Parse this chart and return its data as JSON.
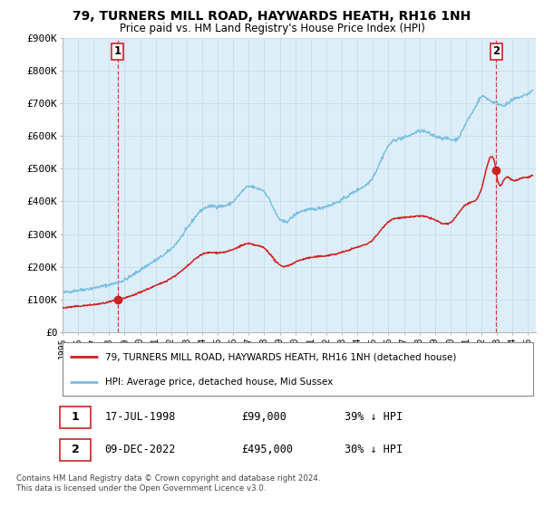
{
  "title": "79, TURNERS MILL ROAD, HAYWARDS HEATH, RH16 1NH",
  "subtitle": "Price paid vs. HM Land Registry's House Price Index (HPI)",
  "ylim": [
    0,
    900000
  ],
  "xlim_start": 1995.0,
  "xlim_end": 2025.5,
  "ytick_labels": [
    "£0",
    "£100K",
    "£200K",
    "£300K",
    "£400K",
    "£500K",
    "£600K",
    "£700K",
    "£800K",
    "£900K"
  ],
  "ytick_values": [
    0,
    100000,
    200000,
    300000,
    400000,
    500000,
    600000,
    700000,
    800000,
    900000
  ],
  "grid_color": "#c8dff0",
  "plot_bg_color": "#ddeef8",
  "hpi_color": "#7bbfdf",
  "price_color": "#cc2222",
  "sale1_date_num": 1998.54,
  "sale1_price": 99000,
  "sale1_label": "1",
  "sale1_date_str": "17-JUL-1998",
  "sale1_price_str": "£99,000",
  "sale1_hpi_str": "39% ↓ HPI",
  "sale2_date_num": 2022.94,
  "sale2_price": 495000,
  "sale2_label": "2",
  "sale2_date_str": "09-DEC-2022",
  "sale2_price_str": "£495,000",
  "sale2_hpi_str": "30% ↓ HPI",
  "legend_line1": "79, TURNERS MILL ROAD, HAYWARDS HEATH, RH16 1NH (detached house)",
  "legend_line2": "HPI: Average price, detached house, Mid Sussex",
  "footer1": "Contains HM Land Registry data © Crown copyright and database right 2024.",
  "footer2": "This data is licensed under the Open Government Licence v3.0.",
  "xtick_years": [
    1995,
    1996,
    1997,
    1998,
    1999,
    2000,
    2001,
    2002,
    2003,
    2004,
    2005,
    2006,
    2007,
    2008,
    2009,
    2010,
    2011,
    2012,
    2013,
    2014,
    2015,
    2016,
    2017,
    2018,
    2019,
    2020,
    2021,
    2022,
    2023,
    2024,
    2025
  ]
}
